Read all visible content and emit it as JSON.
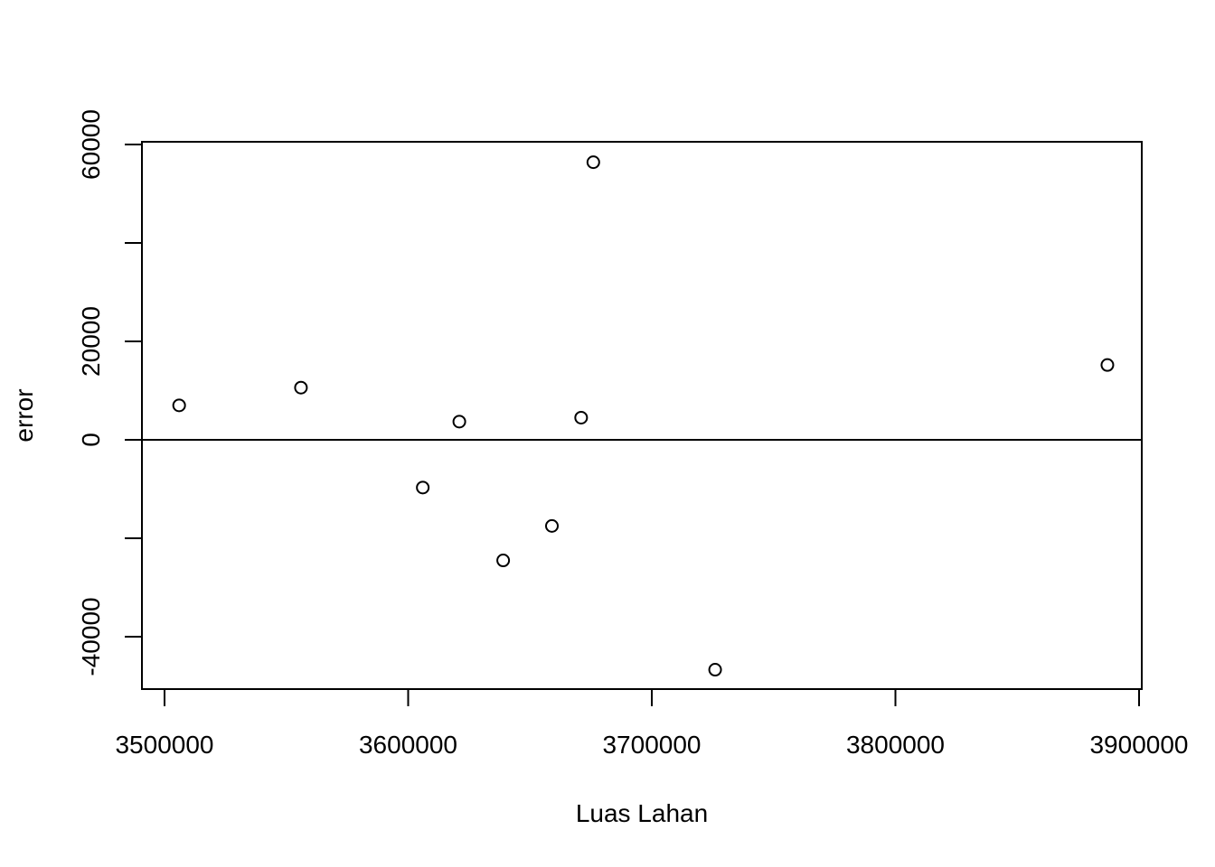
{
  "chart_data": {
    "type": "scatter",
    "title": "",
    "xlabel": "Luas Lahan",
    "ylabel": "error",
    "xlim": [
      3490000,
      3900000
    ],
    "ylim": [
      -51000,
      60000
    ],
    "x_ticks": [
      3500000,
      3600000,
      3700000,
      3800000,
      3900000
    ],
    "x_tick_labels": [
      "3500000",
      "3600000",
      "3700000",
      "3800000",
      "3900000"
    ],
    "y_ticks": [
      -40000,
      -20000,
      0,
      20000,
      40000,
      60000
    ],
    "y_tick_labels": [
      "-40000",
      "",
      "0",
      "20000",
      "",
      "60000"
    ],
    "reference_line_y": 0,
    "grid": false,
    "legend": "none",
    "marker": "open-circle",
    "colors": {
      "points": "#000000",
      "axes": "#000000",
      "background": "#ffffff"
    },
    "points": [
      {
        "x": 3506000,
        "y": 7000
      },
      {
        "x": 3556000,
        "y": 10600
      },
      {
        "x": 3606000,
        "y": -9700
      },
      {
        "x": 3621000,
        "y": 3700
      },
      {
        "x": 3639000,
        "y": -24500
      },
      {
        "x": 3659000,
        "y": -17500
      },
      {
        "x": 3671000,
        "y": 4500
      },
      {
        "x": 3676000,
        "y": 56400
      },
      {
        "x": 3726000,
        "y": -46700
      },
      {
        "x": 3887000,
        "y": 15200
      }
    ]
  }
}
